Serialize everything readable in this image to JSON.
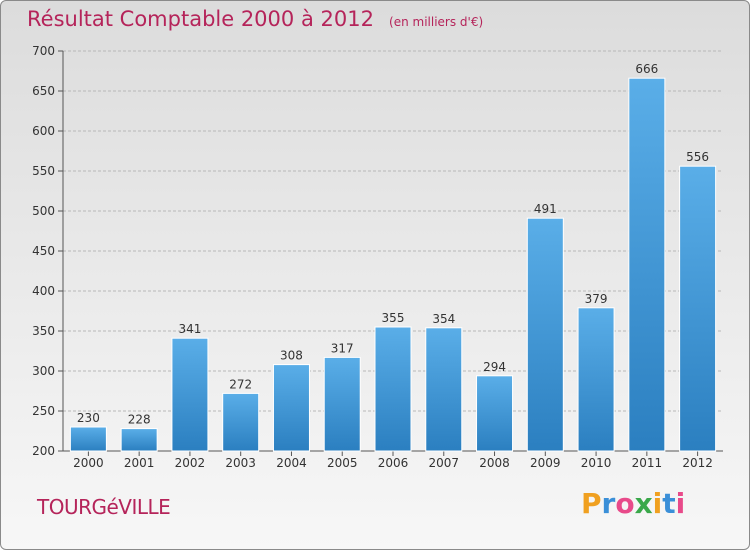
{
  "chart_data": {
    "type": "bar",
    "title": "Résultat Comptable 2000 à 2012",
    "unit_note": "(en milliers d'€)",
    "categories": [
      "2000",
      "2001",
      "2002",
      "2003",
      "2004",
      "2005",
      "2006",
      "2007",
      "2008",
      "2009",
      "2010",
      "2011",
      "2012"
    ],
    "values": [
      230,
      228,
      341,
      272,
      308,
      317,
      355,
      354,
      294,
      491,
      379,
      666,
      556
    ],
    "ylim": [
      200,
      700
    ],
    "yticks": [
      200,
      250,
      300,
      350,
      400,
      450,
      500,
      550,
      600,
      650,
      700
    ],
    "grid": true,
    "legend": "none",
    "bar_color_top": "#5aaee8",
    "bar_color_bottom": "#2b7fc0"
  },
  "commune": "TOURGéVILLE",
  "logo": {
    "letters": [
      "P",
      "r",
      "o",
      "x",
      "i",
      "t",
      "i"
    ],
    "colors": [
      "#f0a020",
      "#3a8fd8",
      "#e84a8a",
      "#3aa84a",
      "#f0a020",
      "#3a8fd8",
      "#e84a8a"
    ]
  },
  "colors": {
    "title": "#b5245a",
    "grid": "#b8b8b8"
  }
}
